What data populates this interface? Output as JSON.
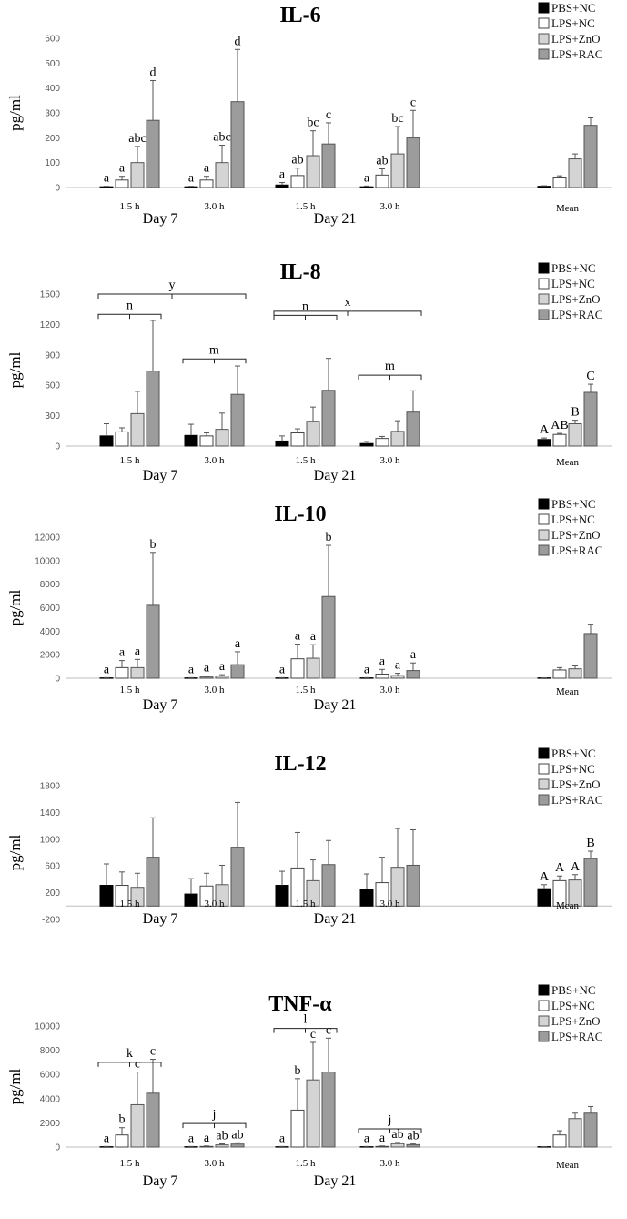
{
  "series_style": {
    "PBS+NC": {
      "fill": "#000000",
      "stroke": "#000000"
    },
    "LPS+NC": {
      "fill": "#ffffff",
      "stroke": "#444444"
    },
    "LPS+ZnO": {
      "fill": "#d4d4d4",
      "stroke": "#555555"
    },
    "LPS+RAC": {
      "fill": "#9c9c9c",
      "stroke": "#555555"
    }
  },
  "chart_data": [
    {
      "type": "bar",
      "title": "IL-6",
      "ylabel": "pg/ml",
      "ylim": [
        0,
        600
      ],
      "yticks": [
        0,
        100,
        200,
        300,
        400,
        500,
        600
      ],
      "legend": [
        "PBS+NC",
        "LPS+NC",
        "LPS+ZnO",
        "LPS+RAC"
      ],
      "groups": [
        {
          "label": "1.5 h",
          "values": [
            3,
            30,
            100,
            270
          ],
          "errors": [
            2,
            15,
            65,
            160
          ],
          "letters": [
            "a",
            "a",
            "abc",
            "d"
          ]
        },
        {
          "label": "3.0 h",
          "values": [
            3,
            30,
            100,
            345
          ],
          "errors": [
            2,
            15,
            70,
            210
          ],
          "letters": [
            "a",
            "a",
            "abc",
            "d"
          ]
        },
        {
          "label": "1.5 h",
          "values": [
            10,
            48,
            128,
            175
          ],
          "errors": [
            10,
            30,
            100,
            85
          ],
          "letters": [
            "a",
            "ab",
            "bc",
            "c"
          ]
        },
        {
          "label": "3.0 h",
          "values": [
            3,
            50,
            135,
            200
          ],
          "errors": [
            3,
            25,
            110,
            110
          ],
          "letters": [
            "a",
            "ab",
            "bc",
            "c"
          ]
        },
        {
          "label": "Mean",
          "values": [
            5,
            42,
            115,
            250
          ],
          "errors": [
            2,
            5,
            20,
            30
          ],
          "letters": [
            "",
            "",
            "",
            ""
          ]
        }
      ],
      "days": [
        "Day 7",
        "Day 21"
      ],
      "brackets": []
    },
    {
      "type": "bar",
      "title": "IL-8",
      "ylabel": "pg/ml",
      "ylim": [
        0,
        1500
      ],
      "yticks": [
        0,
        300,
        600,
        900,
        1200,
        1500
      ],
      "legend": [
        "PBS+NC",
        "LPS+NC",
        "LPS+ZnO",
        "LPS+RAC"
      ],
      "groups": [
        {
          "label": "1.5 h",
          "values": [
            100,
            140,
            320,
            740
          ],
          "errors": [
            120,
            40,
            220,
            500
          ],
          "letters": [
            "",
            "",
            "",
            ""
          ]
        },
        {
          "label": "3.0 h",
          "values": [
            105,
            100,
            165,
            510
          ],
          "errors": [
            110,
            30,
            160,
            280
          ],
          "letters": [
            "",
            "",
            "",
            ""
          ]
        },
        {
          "label": "1.5 h",
          "values": [
            50,
            130,
            245,
            550
          ],
          "errors": [
            50,
            40,
            140,
            315
          ],
          "letters": [
            "",
            "",
            "",
            ""
          ]
        },
        {
          "label": "3.0 h",
          "values": [
            25,
            75,
            145,
            335
          ],
          "errors": [
            20,
            20,
            105,
            210
          ],
          "letters": [
            "",
            "",
            "",
            ""
          ]
        },
        {
          "label": "Mean",
          "values": [
            65,
            115,
            220,
            530
          ],
          "errors": [
            15,
            10,
            35,
            80
          ],
          "letters": [
            "A",
            "AB",
            "B",
            "C"
          ]
        }
      ],
      "days": [
        "Day 7",
        "Day 21"
      ],
      "brackets": [
        {
          "label": "n",
          "from_group": 0,
          "to_group": 0,
          "y": 1300
        },
        {
          "label": "m",
          "from_group": 1,
          "to_group": 1,
          "y": 860
        },
        {
          "label": "n",
          "from_group": 2,
          "to_group": 2,
          "y": 1290
        },
        {
          "label": "m",
          "from_group": 3,
          "to_group": 3,
          "y": 700
        },
        {
          "label": "y",
          "from_group": 0,
          "to_group": 1,
          "y": 1500
        },
        {
          "label": "x",
          "from_group": 2,
          "to_group": 3,
          "y": 1330
        }
      ]
    },
    {
      "type": "bar",
      "title": "IL-10",
      "ylabel": "pg/ml",
      "ylim": [
        0,
        12000
      ],
      "yticks": [
        0,
        2000,
        4000,
        6000,
        8000,
        10000,
        12000
      ],
      "legend": [
        "PBS+NC",
        "LPS+NC",
        "LPS+ZnO",
        "LPS+RAC"
      ],
      "groups": [
        {
          "label": "1.5 h",
          "values": [
            30,
            900,
            900,
            6200
          ],
          "errors": [
            20,
            600,
            700,
            4500
          ],
          "letters": [
            "a",
            "a",
            "a",
            "b"
          ]
        },
        {
          "label": "3.0 h",
          "values": [
            30,
            100,
            180,
            1150
          ],
          "errors": [
            20,
            80,
            120,
            1100
          ],
          "letters": [
            "a",
            "a",
            "a",
            "a"
          ]
        },
        {
          "label": "1.5 h",
          "values": [
            30,
            1650,
            1700,
            6950
          ],
          "errors": [
            20,
            1250,
            1150,
            4350
          ],
          "letters": [
            "a",
            "a",
            "a",
            "b"
          ]
        },
        {
          "label": "3.0 h",
          "values": [
            30,
            350,
            220,
            650
          ],
          "errors": [
            20,
            400,
            200,
            650
          ],
          "letters": [
            "a",
            "a",
            "a",
            "a"
          ]
        },
        {
          "label": "Mean",
          "values": [
            30,
            700,
            800,
            3800
          ],
          "errors": [
            10,
            200,
            250,
            800
          ],
          "letters": [
            "",
            "",
            "",
            ""
          ]
        }
      ],
      "days": [
        "Day 7",
        "Day 21"
      ],
      "brackets": []
    },
    {
      "type": "bar",
      "title": "IL-12",
      "ylabel": "pg/ml",
      "ylim": [
        -200,
        1800
      ],
      "yticks": [
        -200,
        200,
        600,
        1000,
        1400,
        1800
      ],
      "legend": [
        "PBS+NC",
        "LPS+NC",
        "LPS+ZnO",
        "LPS+RAC"
      ],
      "groups": [
        {
          "label": "1.5 h",
          "values": [
            310,
            310,
            280,
            730
          ],
          "errors": [
            320,
            200,
            210,
            590
          ],
          "letters": [
            "",
            "",
            "",
            ""
          ]
        },
        {
          "label": "3.0 h",
          "values": [
            180,
            300,
            320,
            880
          ],
          "errors": [
            230,
            190,
            290,
            670
          ],
          "letters": [
            "",
            "",
            "",
            ""
          ]
        },
        {
          "label": "1.5 h",
          "values": [
            310,
            570,
            380,
            620
          ],
          "errors": [
            210,
            530,
            310,
            360
          ],
          "letters": [
            "",
            "",
            "",
            ""
          ]
        },
        {
          "label": "3.0 h",
          "values": [
            250,
            350,
            580,
            610
          ],
          "errors": [
            230,
            380,
            580,
            530
          ],
          "letters": [
            "",
            "",
            "",
            ""
          ]
        },
        {
          "label": "Mean",
          "values": [
            260,
            380,
            390,
            710
          ],
          "errors": [
            60,
            70,
            80,
            110
          ],
          "letters": [
            "A",
            "A",
            "A",
            "B"
          ]
        }
      ],
      "days": [
        "Day 7",
        "Day 21"
      ],
      "brackets": []
    },
    {
      "type": "bar",
      "title": "TNF-α",
      "ylabel": "pg/ml",
      "ylim": [
        0,
        10000
      ],
      "yticks": [
        0,
        2000,
        4000,
        6000,
        8000,
        10000
      ],
      "legend": [
        "PBS+NC",
        "LPS+NC",
        "LPS+ZnO",
        "LPS+RAC"
      ],
      "groups": [
        {
          "label": "1.5 h",
          "values": [
            30,
            1000,
            3500,
            4450
          ],
          "errors": [
            20,
            600,
            2700,
            2800
          ],
          "letters": [
            "a",
            "b",
            "c",
            "c"
          ]
        },
        {
          "label": "3.0 h",
          "values": [
            30,
            50,
            180,
            250
          ],
          "errors": [
            20,
            40,
            80,
            100
          ],
          "letters": [
            "a",
            "a",
            "ab",
            "ab"
          ]
        },
        {
          "label": "1.5 h",
          "values": [
            30,
            3050,
            5550,
            6200
          ],
          "errors": [
            20,
            2600,
            3100,
            2800
          ],
          "letters": [
            "a",
            "b",
            "c",
            "c"
          ]
        },
        {
          "label": "3.0 h",
          "values": [
            30,
            50,
            280,
            200
          ],
          "errors": [
            20,
            40,
            100,
            80
          ],
          "letters": [
            "a",
            "a",
            "ab",
            "ab"
          ]
        },
        {
          "label": "Mean",
          "values": [
            30,
            1000,
            2350,
            2800
          ],
          "errors": [
            10,
            350,
            450,
            550
          ],
          "letters": [
            "",
            "",
            "",
            ""
          ]
        }
      ],
      "days": [
        "Day 7",
        "Day 21"
      ],
      "brackets": [
        {
          "label": "k",
          "from_group": 0,
          "to_group": 0,
          "y": 7000
        },
        {
          "label": "j",
          "from_group": 1,
          "to_group": 1,
          "y": 1950
        },
        {
          "label": "l",
          "from_group": 2,
          "to_group": 2,
          "y": 9800
        },
        {
          "label": "j",
          "from_group": 3,
          "to_group": 3,
          "y": 1500
        }
      ]
    }
  ]
}
